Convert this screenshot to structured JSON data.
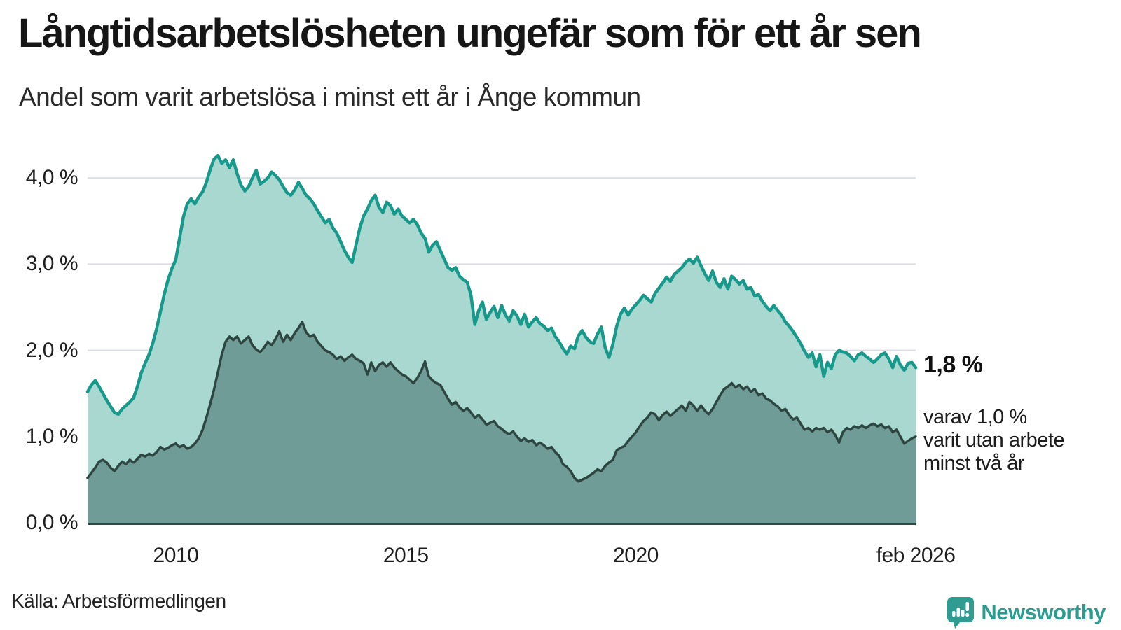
{
  "header": {
    "title": "Långtidsarbetslösheten ungefär som för ett år sen",
    "subtitle": "Andel som varit arbetslösa i minst ett år i Ånge kommun"
  },
  "annotations": {
    "end_value": "1,8 %",
    "note_lines": [
      "varav 1,0 %",
      "varit utan arbete",
      "minst två år"
    ]
  },
  "footer": {
    "source": "Källa: Arbetsförmedlingen",
    "brand": "Newsworthy"
  },
  "colors": {
    "background": "#ffffff",
    "grid": "#dadde2",
    "axis": "#2d4641",
    "series1_line": "#17998c",
    "series1_fill": "#a9d8d0",
    "series2_line": "#2d4641",
    "series2_fill": "#6f9c96",
    "brand_teal": "#2b9c90",
    "text_dark": "#161616"
  },
  "chart_data": {
    "type": "area",
    "title": "Långtidsarbetslösheten ungefär som för ett år sen",
    "subtitle": "Andel som varit arbetslösa i minst ett år i Ånge kommun",
    "unit": "%",
    "frequency": "monthly",
    "x_start": "2008-02",
    "x_end": "2026-02",
    "ylim": [
      0,
      4.45
    ],
    "grid": true,
    "legend_position": "end-of-line-annotations",
    "y_ticks": [
      {
        "value": 0,
        "label": "0,0 %"
      },
      {
        "value": 1,
        "label": "1,0 %"
      },
      {
        "value": 2,
        "label": "2,0 %"
      },
      {
        "value": 3,
        "label": "3,0 %"
      },
      {
        "value": 4,
        "label": "4,0 %"
      }
    ],
    "x_ticks": [
      {
        "month": "2010-01",
        "label": "2010"
      },
      {
        "month": "2015-01",
        "label": "2015"
      },
      {
        "month": "2020-01",
        "label": "2020"
      },
      {
        "month": "2026-02",
        "label": "feb 2026"
      }
    ],
    "series": [
      {
        "name": "Andel arbetslösa minst ett år",
        "end_value_label": "1,8 %",
        "color": "#17998c",
        "fill": "#a9d8d0",
        "line_width": 4.5,
        "values": [
          1.52,
          1.6,
          1.65,
          1.58,
          1.5,
          1.42,
          1.35,
          1.28,
          1.26,
          1.32,
          1.36,
          1.4,
          1.45,
          1.58,
          1.74,
          1.85,
          1.95,
          2.08,
          2.25,
          2.45,
          2.65,
          2.82,
          2.95,
          3.05,
          3.3,
          3.55,
          3.7,
          3.76,
          3.7,
          3.78,
          3.84,
          3.95,
          4.1,
          4.22,
          4.26,
          4.17,
          4.21,
          4.12,
          4.21,
          4.05,
          3.92,
          3.85,
          3.9,
          4.0,
          4.09,
          3.93,
          3.96,
          4.0,
          4.07,
          4.03,
          3.98,
          3.9,
          3.83,
          3.8,
          3.86,
          3.95,
          3.88,
          3.8,
          3.76,
          3.7,
          3.62,
          3.55,
          3.48,
          3.52,
          3.42,
          3.36,
          3.26,
          3.16,
          3.08,
          3.02,
          3.22,
          3.42,
          3.56,
          3.64,
          3.74,
          3.8,
          3.66,
          3.6,
          3.72,
          3.68,
          3.58,
          3.64,
          3.56,
          3.52,
          3.48,
          3.52,
          3.46,
          3.36,
          3.3,
          3.14,
          3.22,
          3.26,
          3.16,
          3.06,
          2.96,
          2.93,
          2.96,
          2.86,
          2.82,
          2.79,
          2.64,
          2.3,
          2.46,
          2.56,
          2.36,
          2.44,
          2.51,
          2.38,
          2.52,
          2.41,
          2.34,
          2.46,
          2.4,
          2.3,
          2.42,
          2.27,
          2.33,
          2.38,
          2.31,
          2.28,
          2.23,
          2.26,
          2.16,
          2.1,
          2.02,
          1.96,
          2.05,
          2.02,
          2.17,
          2.23,
          2.15,
          2.1,
          2.08,
          2.19,
          2.27,
          2.03,
          1.92,
          2.07,
          2.28,
          2.42,
          2.49,
          2.41,
          2.48,
          2.53,
          2.58,
          2.64,
          2.6,
          2.56,
          2.66,
          2.72,
          2.78,
          2.85,
          2.8,
          2.88,
          2.92,
          2.96,
          3.02,
          3.06,
          3.01,
          3.08,
          2.98,
          2.89,
          2.81,
          2.92,
          2.79,
          2.73,
          2.83,
          2.71,
          2.86,
          2.82,
          2.77,
          2.81,
          2.71,
          2.73,
          2.63,
          2.65,
          2.57,
          2.51,
          2.46,
          2.52,
          2.46,
          2.41,
          2.33,
          2.28,
          2.22,
          2.15,
          2.08,
          1.99,
          1.92,
          1.97,
          1.81,
          1.95,
          1.7,
          1.86,
          1.79,
          1.95,
          2.0,
          1.98,
          1.97,
          1.93,
          1.88,
          1.95,
          1.97,
          1.93,
          1.9,
          1.86,
          1.9,
          1.95,
          1.97,
          1.9,
          1.8,
          1.93,
          1.83,
          1.77,
          1.85,
          1.86,
          1.8
        ]
      },
      {
        "name": "varav arbetslösa minst två år",
        "end_value_label": "varav 1,0 % varit utan arbete minst två år",
        "color": "#2d4641",
        "fill": "#6f9c96",
        "line_width": 3.5,
        "values": [
          0.52,
          0.58,
          0.64,
          0.71,
          0.73,
          0.7,
          0.64,
          0.6,
          0.66,
          0.71,
          0.68,
          0.73,
          0.7,
          0.74,
          0.79,
          0.77,
          0.8,
          0.78,
          0.82,
          0.88,
          0.85,
          0.87,
          0.9,
          0.92,
          0.88,
          0.9,
          0.86,
          0.88,
          0.92,
          0.98,
          1.08,
          1.22,
          1.38,
          1.55,
          1.75,
          1.95,
          2.1,
          2.16,
          2.12,
          2.16,
          2.08,
          2.12,
          2.16,
          2.06,
          2.01,
          1.98,
          2.03,
          2.1,
          2.06,
          2.13,
          2.22,
          2.1,
          2.18,
          2.12,
          2.2,
          2.26,
          2.33,
          2.21,
          2.16,
          2.18,
          2.1,
          2.05,
          2.0,
          1.98,
          1.95,
          1.9,
          1.93,
          1.88,
          1.92,
          1.95,
          1.9,
          1.88,
          1.85,
          1.72,
          1.86,
          1.76,
          1.83,
          1.86,
          1.81,
          1.86,
          1.8,
          1.76,
          1.72,
          1.7,
          1.66,
          1.62,
          1.68,
          1.76,
          1.87,
          1.7,
          1.65,
          1.62,
          1.6,
          1.52,
          1.44,
          1.37,
          1.4,
          1.34,
          1.3,
          1.33,
          1.28,
          1.22,
          1.25,
          1.2,
          1.14,
          1.16,
          1.18,
          1.12,
          1.09,
          1.05,
          1.03,
          1.06,
          1.0,
          0.95,
          0.98,
          0.94,
          0.96,
          0.9,
          0.93,
          0.9,
          0.86,
          0.88,
          0.82,
          0.78,
          0.68,
          0.65,
          0.6,
          0.52,
          0.48,
          0.5,
          0.52,
          0.55,
          0.58,
          0.62,
          0.6,
          0.66,
          0.7,
          0.73,
          0.84,
          0.87,
          0.89,
          0.95,
          1.0,
          1.05,
          1.12,
          1.18,
          1.22,
          1.28,
          1.26,
          1.19,
          1.25,
          1.29,
          1.24,
          1.28,
          1.32,
          1.36,
          1.3,
          1.4,
          1.36,
          1.3,
          1.36,
          1.3,
          1.26,
          1.32,
          1.4,
          1.48,
          1.55,
          1.58,
          1.62,
          1.57,
          1.6,
          1.55,
          1.58,
          1.52,
          1.55,
          1.48,
          1.5,
          1.44,
          1.42,
          1.38,
          1.35,
          1.3,
          1.32,
          1.25,
          1.2,
          1.22,
          1.15,
          1.08,
          1.1,
          1.06,
          1.1,
          1.08,
          1.1,
          1.05,
          1.08,
          1.02,
          0.93,
          1.05,
          1.1,
          1.08,
          1.12,
          1.1,
          1.13,
          1.1,
          1.13,
          1.15,
          1.12,
          1.14,
          1.1,
          1.12,
          1.05,
          1.08,
          1.0,
          0.92,
          0.95,
          0.98,
          1.0
        ]
      }
    ]
  }
}
